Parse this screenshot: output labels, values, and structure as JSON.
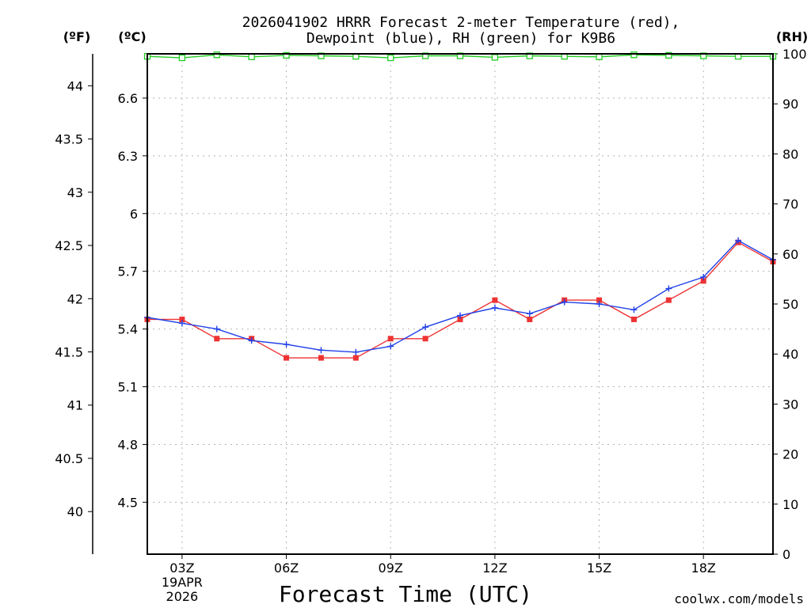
{
  "chart_data": {
    "type": "line",
    "title_line1": "2026041902 HRRR Forecast 2-meter Temperature (red),",
    "title_line2": "Dewpoint (blue), RH (green) for K9B6",
    "xlabel": "Forecast Time (UTC)",
    "credit": "coolwx.com/models",
    "units": {
      "f": "(ºF)",
      "c": "(ºC)",
      "rh": "(RH)"
    },
    "colors": {
      "temperature": "#ee3333",
      "dewpoint": "#2040e8",
      "rh": "#22cc22",
      "credit": "#e01010"
    },
    "x_hours": [
      2,
      3,
      4,
      5,
      6,
      7,
      8,
      9,
      10,
      11,
      12,
      13,
      14,
      15,
      16,
      17,
      18,
      19,
      20
    ],
    "xlim": [
      2,
      20
    ],
    "x_ticks": [
      {
        "hour": 3,
        "label": "03Z",
        "sub1": "19APR",
        "sub2": "2026"
      },
      {
        "hour": 6,
        "label": "06Z"
      },
      {
        "hour": 9,
        "label": "09Z"
      },
      {
        "hour": 12,
        "label": "12Z"
      },
      {
        "hour": 15,
        "label": "15Z"
      },
      {
        "hour": 18,
        "label": "18Z"
      }
    ],
    "c_axis": {
      "range": [
        4.23,
        6.83
      ],
      "ticks": [
        "4.5",
        "4.8",
        "5.1",
        "5.4",
        "5.7",
        "6",
        "6.3",
        "6.6"
      ]
    },
    "f_axis": {
      "range": [
        39.6,
        44.3
      ],
      "ticks": [
        "40",
        "40.5",
        "41",
        "41.5",
        "42",
        "42.5",
        "43",
        "43.5",
        "44"
      ]
    },
    "rh_axis": {
      "range": [
        0,
        100
      ],
      "ticks": [
        "0",
        "10",
        "20",
        "30",
        "40",
        "50",
        "60",
        "70",
        "80",
        "90",
        "100"
      ]
    },
    "series": [
      {
        "name": "Temperature",
        "axis": "c",
        "values": [
          5.45,
          5.45,
          5.35,
          5.35,
          5.25,
          5.25,
          5.25,
          5.35,
          5.35,
          5.45,
          5.55,
          5.45,
          5.55,
          5.55,
          5.45,
          5.55,
          5.65,
          5.85,
          5.75
        ]
      },
      {
        "name": "Dewpoint",
        "axis": "c",
        "values": [
          5.46,
          5.43,
          5.4,
          5.34,
          5.32,
          5.29,
          5.28,
          5.31,
          5.41,
          5.47,
          5.51,
          5.48,
          5.54,
          5.53,
          5.5,
          5.61,
          5.67,
          5.86,
          5.76
        ]
      },
      {
        "name": "RH",
        "axis": "rh",
        "values": [
          99.5,
          99.2,
          99.8,
          99.4,
          99.7,
          99.6,
          99.5,
          99.2,
          99.6,
          99.6,
          99.3,
          99.6,
          99.5,
          99.4,
          99.8,
          99.7,
          99.6,
          99.5,
          99.5
        ]
      }
    ]
  }
}
